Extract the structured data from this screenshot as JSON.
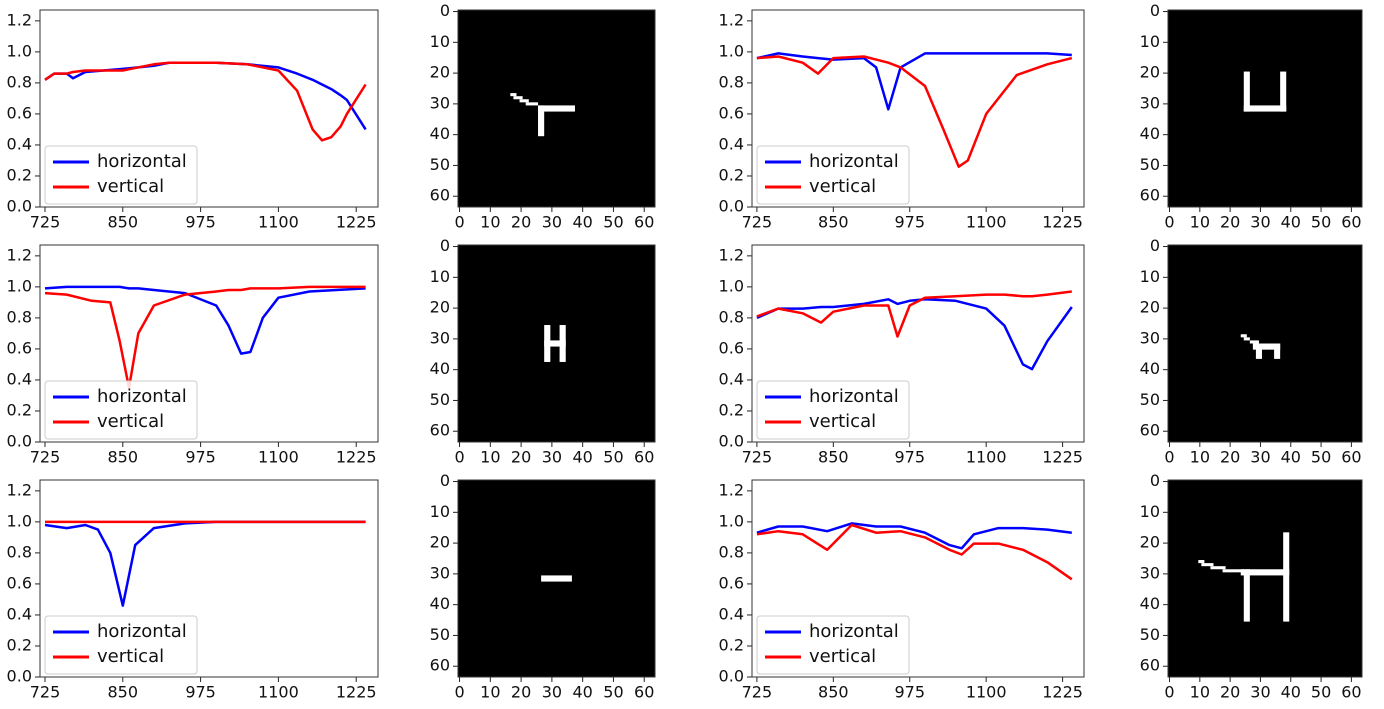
{
  "chart_data": [
    {
      "type": "line",
      "legend": "lower left",
      "xlim": [
        717,
        1260
      ],
      "ylim": [
        0,
        1.27
      ],
      "xticks": [
        725,
        850,
        975,
        1100,
        1225
      ],
      "yticks": [
        {
          "value": 0,
          "label": "0.0"
        },
        {
          "value": 0.2,
          "label": "0.2"
        },
        {
          "value": 0.4,
          "label": "0.4"
        },
        {
          "value": 0.6,
          "label": "0.6"
        },
        {
          "value": 0.8,
          "label": "0.8"
        },
        {
          "value": 1,
          "label": "1.0"
        },
        {
          "value": 1.2,
          "label": "1.2"
        }
      ],
      "x": [
        725,
        740,
        760,
        770,
        790,
        850,
        900,
        925,
        1000,
        1050,
        1100,
        1130,
        1155,
        1170,
        1185,
        1200,
        1210,
        1240
      ],
      "series": [
        {
          "name": "horizontal",
          "color": "#0000ff",
          "values": [
            0.82,
            0.86,
            0.86,
            0.83,
            0.87,
            0.89,
            0.91,
            0.93,
            0.93,
            0.92,
            0.9,
            0.86,
            0.82,
            0.79,
            0.76,
            0.72,
            0.69,
            0.5
          ]
        },
        {
          "name": "vertical",
          "color": "#ff0000",
          "values": [
            0.82,
            0.86,
            0.86,
            0.87,
            0.88,
            0.88,
            0.92,
            0.93,
            0.93,
            0.92,
            0.88,
            0.75,
            0.5,
            0.43,
            0.45,
            0.52,
            0.6,
            0.79
          ]
        }
      ]
    },
    {
      "type": "image",
      "background": "#000000",
      "color": "#ffffff",
      "xlim": [
        -0.5,
        63.5
      ],
      "ylim": [
        63.5,
        -0.5
      ],
      "xticks": [
        0,
        10,
        20,
        30,
        40,
        50,
        60
      ],
      "yticks": [
        0,
        10,
        20,
        30,
        40,
        50,
        60
      ],
      "shapes": [
        [
          26,
          31,
          12,
          2
        ],
        [
          26,
          31,
          2,
          10
        ],
        [
          17,
          27,
          2,
          1
        ],
        [
          18,
          28,
          3,
          1
        ],
        [
          20,
          29,
          3,
          1
        ],
        [
          22,
          30,
          4,
          1
        ]
      ]
    },
    {
      "type": "line",
      "legend": "lower left",
      "xlim": [
        717,
        1260
      ],
      "ylim": [
        0,
        1.27
      ],
      "xticks": [
        725,
        850,
        975,
        1100,
        1225
      ],
      "yticks": [
        {
          "value": 0,
          "label": "0.0"
        },
        {
          "value": 0.2,
          "label": "0.2"
        },
        {
          "value": 0.4,
          "label": "0.4"
        },
        {
          "value": 0.6,
          "label": "0.6"
        },
        {
          "value": 0.8,
          "label": "0.8"
        },
        {
          "value": 1,
          "label": "1.0"
        },
        {
          "value": 1.2,
          "label": "1.2"
        }
      ],
      "x": [
        725,
        760,
        800,
        825,
        850,
        900,
        920,
        940,
        960,
        1000,
        1030,
        1055,
        1070,
        1100,
        1150,
        1200,
        1240
      ],
      "series": [
        {
          "name": "horizontal",
          "color": "#0000ff",
          "values": [
            0.96,
            0.99,
            0.97,
            0.96,
            0.95,
            0.96,
            0.9,
            0.63,
            0.9,
            0.99,
            0.99,
            0.99,
            0.99,
            0.99,
            0.99,
            0.99,
            0.98
          ]
        },
        {
          "name": "vertical",
          "color": "#ff0000",
          "values": [
            0.96,
            0.97,
            0.93,
            0.86,
            0.96,
            0.97,
            0.95,
            0.93,
            0.9,
            0.78,
            0.5,
            0.26,
            0.3,
            0.6,
            0.85,
            0.92,
            0.96
          ]
        }
      ]
    },
    {
      "type": "image",
      "background": "#000000",
      "color": "#ffffff",
      "xlim": [
        -0.5,
        63.5
      ],
      "ylim": [
        63.5,
        -0.5
      ],
      "xticks": [
        0,
        10,
        20,
        30,
        40,
        50,
        60
      ],
      "yticks": [
        0,
        10,
        20,
        30,
        40,
        50,
        60
      ],
      "shapes": [
        [
          25,
          20,
          2,
          13
        ],
        [
          37,
          20,
          2,
          13
        ],
        [
          25,
          31,
          14,
          2
        ]
      ]
    },
    {
      "type": "line",
      "legend": "lower left",
      "xlim": [
        717,
        1260
      ],
      "ylim": [
        0,
        1.27
      ],
      "xticks": [
        725,
        850,
        975,
        1100,
        1225
      ],
      "yticks": [
        {
          "value": 0,
          "label": "0.0"
        },
        {
          "value": 0.2,
          "label": "0.2"
        },
        {
          "value": 0.4,
          "label": "0.4"
        },
        {
          "value": 0.6,
          "label": "0.6"
        },
        {
          "value": 0.8,
          "label": "0.8"
        },
        {
          "value": 1,
          "label": "1.0"
        },
        {
          "value": 1.2,
          "label": "1.2"
        }
      ],
      "x": [
        725,
        760,
        800,
        830,
        845,
        860,
        875,
        900,
        950,
        1000,
        1020,
        1040,
        1055,
        1075,
        1100,
        1150,
        1240
      ],
      "series": [
        {
          "name": "horizontal",
          "color": "#0000ff",
          "values": [
            0.99,
            1,
            1,
            1,
            1,
            0.99,
            0.99,
            0.98,
            0.96,
            0.88,
            0.75,
            0.57,
            0.58,
            0.8,
            0.93,
            0.97,
            0.99
          ]
        },
        {
          "name": "vertical",
          "color": "#ff0000",
          "values": [
            0.96,
            0.95,
            0.91,
            0.9,
            0.65,
            0.35,
            0.7,
            0.88,
            0.95,
            0.97,
            0.98,
            0.98,
            0.99,
            0.99,
            0.99,
            1,
            1
          ]
        }
      ]
    },
    {
      "type": "image",
      "background": "#000000",
      "color": "#ffffff",
      "xlim": [
        -0.5,
        63.5
      ],
      "ylim": [
        63.5,
        -0.5
      ],
      "xticks": [
        0,
        10,
        20,
        30,
        40,
        50,
        60
      ],
      "yticks": [
        0,
        10,
        20,
        30,
        40,
        50,
        60
      ],
      "shapes": [
        [
          28,
          26,
          2,
          12
        ],
        [
          33,
          26,
          2,
          12
        ],
        [
          28,
          31,
          7,
          2
        ]
      ]
    },
    {
      "type": "line",
      "legend": "lower left",
      "xlim": [
        717,
        1260
      ],
      "ylim": [
        0,
        1.27
      ],
      "xticks": [
        725,
        850,
        975,
        1100,
        1225
      ],
      "yticks": [
        {
          "value": 0,
          "label": "0.0"
        },
        {
          "value": 0.2,
          "label": "0.2"
        },
        {
          "value": 0.4,
          "label": "0.4"
        },
        {
          "value": 0.6,
          "label": "0.6"
        },
        {
          "value": 0.8,
          "label": "0.8"
        },
        {
          "value": 1,
          "label": "1.0"
        },
        {
          "value": 1.2,
          "label": "1.2"
        }
      ],
      "x": [
        725,
        760,
        800,
        830,
        850,
        900,
        940,
        955,
        975,
        1000,
        1050,
        1100,
        1130,
        1160,
        1175,
        1200,
        1240
      ],
      "series": [
        {
          "name": "horizontal",
          "color": "#0000ff",
          "values": [
            0.8,
            0.86,
            0.86,
            0.87,
            0.87,
            0.89,
            0.92,
            0.89,
            0.91,
            0.92,
            0.91,
            0.86,
            0.75,
            0.5,
            0.47,
            0.65,
            0.87
          ]
        },
        {
          "name": "vertical",
          "color": "#ff0000",
          "values": [
            0.81,
            0.86,
            0.83,
            0.77,
            0.84,
            0.88,
            0.88,
            0.68,
            0.88,
            0.93,
            0.94,
            0.95,
            0.95,
            0.94,
            0.94,
            0.95,
            0.97
          ]
        }
      ]
    },
    {
      "type": "image",
      "background": "#000000",
      "color": "#ffffff",
      "xlim": [
        -0.5,
        63.5
      ],
      "ylim": [
        63.5,
        -0.5
      ],
      "xticks": [
        0,
        10,
        20,
        30,
        40,
        50,
        60
      ],
      "yticks": [
        0,
        10,
        20,
        30,
        40,
        50,
        60
      ],
      "shapes": [
        [
          24,
          29,
          2,
          1
        ],
        [
          25,
          30,
          2,
          1
        ],
        [
          27,
          31,
          3,
          1
        ],
        [
          28,
          32,
          9,
          2
        ],
        [
          29,
          32,
          2,
          5
        ],
        [
          35,
          32,
          2,
          5
        ]
      ]
    },
    {
      "type": "line",
      "legend": "lower left",
      "xlim": [
        717,
        1260
      ],
      "ylim": [
        0,
        1.27
      ],
      "xticks": [
        725,
        850,
        975,
        1100,
        1225
      ],
      "yticks": [
        {
          "value": 0,
          "label": "0.0"
        },
        {
          "value": 0.2,
          "label": "0.2"
        },
        {
          "value": 0.4,
          "label": "0.4"
        },
        {
          "value": 0.6,
          "label": "0.6"
        },
        {
          "value": 0.8,
          "label": "0.8"
        },
        {
          "value": 1,
          "label": "1.0"
        },
        {
          "value": 1.2,
          "label": "1.2"
        }
      ],
      "x": [
        725,
        760,
        790,
        810,
        830,
        850,
        870,
        900,
        950,
        1000,
        1240
      ],
      "series": [
        {
          "name": "horizontal",
          "color": "#0000ff",
          "values": [
            0.98,
            0.96,
            0.98,
            0.95,
            0.8,
            0.46,
            0.85,
            0.96,
            0.99,
            1,
            1
          ]
        },
        {
          "name": "vertical",
          "color": "#ff0000",
          "values": [
            1,
            1,
            1,
            1,
            1,
            1,
            1,
            1,
            1,
            1,
            1
          ]
        }
      ]
    },
    {
      "type": "image",
      "background": "#000000",
      "color": "#ffffff",
      "xlim": [
        -0.5,
        63.5
      ],
      "ylim": [
        63.5,
        -0.5
      ],
      "xticks": [
        0,
        10,
        20,
        30,
        40,
        50,
        60
      ],
      "yticks": [
        0,
        10,
        20,
        30,
        40,
        50,
        60
      ],
      "shapes": [
        [
          27,
          31,
          10,
          2
        ]
      ]
    },
    {
      "type": "line",
      "legend": "lower left",
      "xlim": [
        717,
        1260
      ],
      "ylim": [
        0,
        1.27
      ],
      "xticks": [
        725,
        850,
        975,
        1100,
        1225
      ],
      "yticks": [
        {
          "value": 0,
          "label": "0.0"
        },
        {
          "value": 0.2,
          "label": "0.2"
        },
        {
          "value": 0.4,
          "label": "0.4"
        },
        {
          "value": 0.6,
          "label": "0.6"
        },
        {
          "value": 0.8,
          "label": "0.8"
        },
        {
          "value": 1,
          "label": "1.0"
        },
        {
          "value": 1.2,
          "label": "1.2"
        }
      ],
      "x": [
        725,
        760,
        800,
        840,
        880,
        920,
        960,
        1000,
        1040,
        1060,
        1080,
        1120,
        1160,
        1200,
        1240
      ],
      "series": [
        {
          "name": "horizontal",
          "color": "#0000ff",
          "values": [
            0.93,
            0.97,
            0.97,
            0.94,
            0.99,
            0.97,
            0.97,
            0.93,
            0.85,
            0.83,
            0.92,
            0.96,
            0.96,
            0.95,
            0.93
          ]
        },
        {
          "name": "vertical",
          "color": "#ff0000",
          "values": [
            0.92,
            0.94,
            0.92,
            0.82,
            0.98,
            0.93,
            0.94,
            0.9,
            0.82,
            0.79,
            0.86,
            0.86,
            0.82,
            0.74,
            0.63
          ]
        }
      ]
    },
    {
      "type": "image",
      "background": "#000000",
      "color": "#ffffff",
      "xlim": [
        -0.5,
        63.5
      ],
      "ylim": [
        63.5,
        -0.5
      ],
      "xticks": [
        0,
        10,
        20,
        30,
        40,
        50,
        60
      ],
      "yticks": [
        0,
        10,
        20,
        30,
        40,
        50,
        60
      ],
      "shapes": [
        [
          10,
          26,
          2,
          1
        ],
        [
          11,
          27,
          4,
          1
        ],
        [
          14,
          28,
          5,
          1
        ],
        [
          18,
          29,
          7,
          1
        ],
        [
          24,
          29,
          16,
          2
        ],
        [
          25,
          29,
          2,
          17
        ],
        [
          38,
          17,
          2,
          29
        ]
      ]
    }
  ]
}
